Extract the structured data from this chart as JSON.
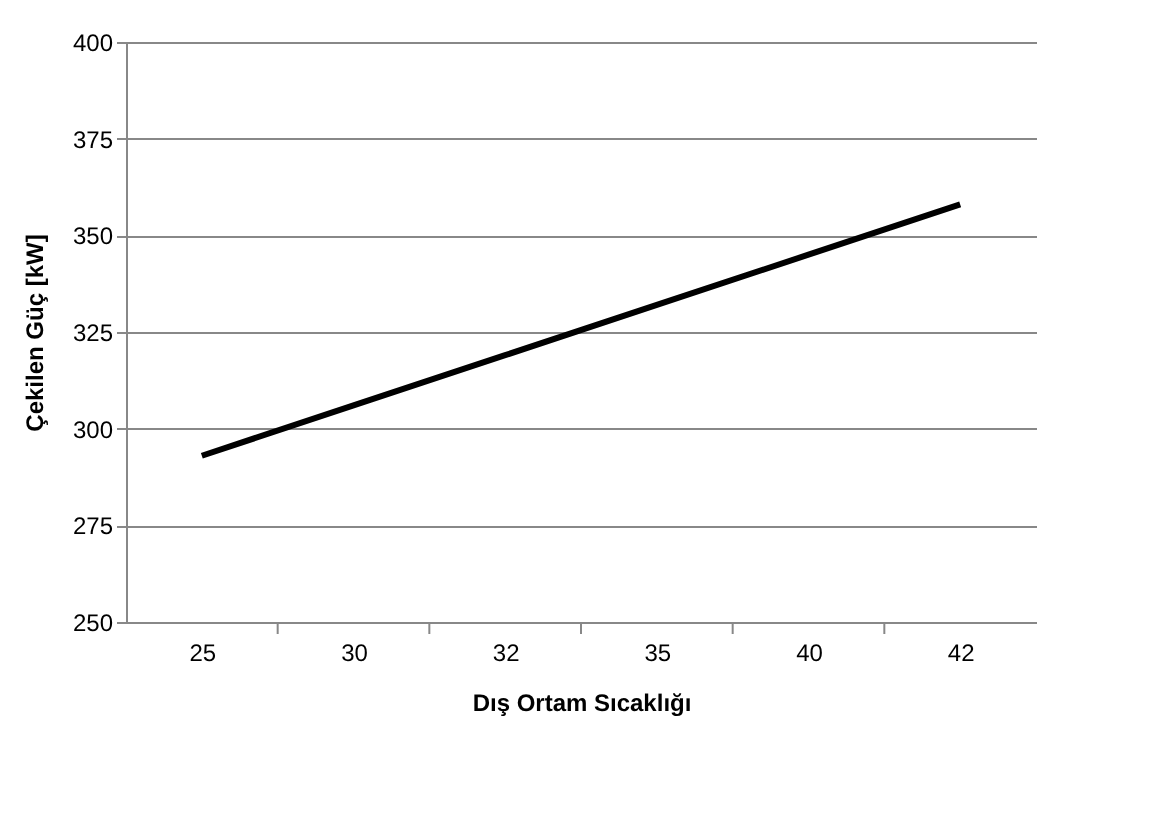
{
  "chart_data": {
    "type": "line",
    "xlabel": "Dış Ortam Sıcaklığı",
    "ylabel": "Çekilen Güç [kW]",
    "categories": [
      "25",
      "30",
      "32",
      "35",
      "40",
      "42"
    ],
    "series": [
      {
        "color": "#000000",
        "values": [
          293,
          306,
          319,
          332,
          345,
          358
        ]
      }
    ],
    "ylim": [
      250,
      400
    ],
    "yticks": [
      250,
      275,
      300,
      325,
      350,
      375,
      400
    ],
    "grid": "y",
    "marker": "none",
    "line_style": "solid"
  }
}
